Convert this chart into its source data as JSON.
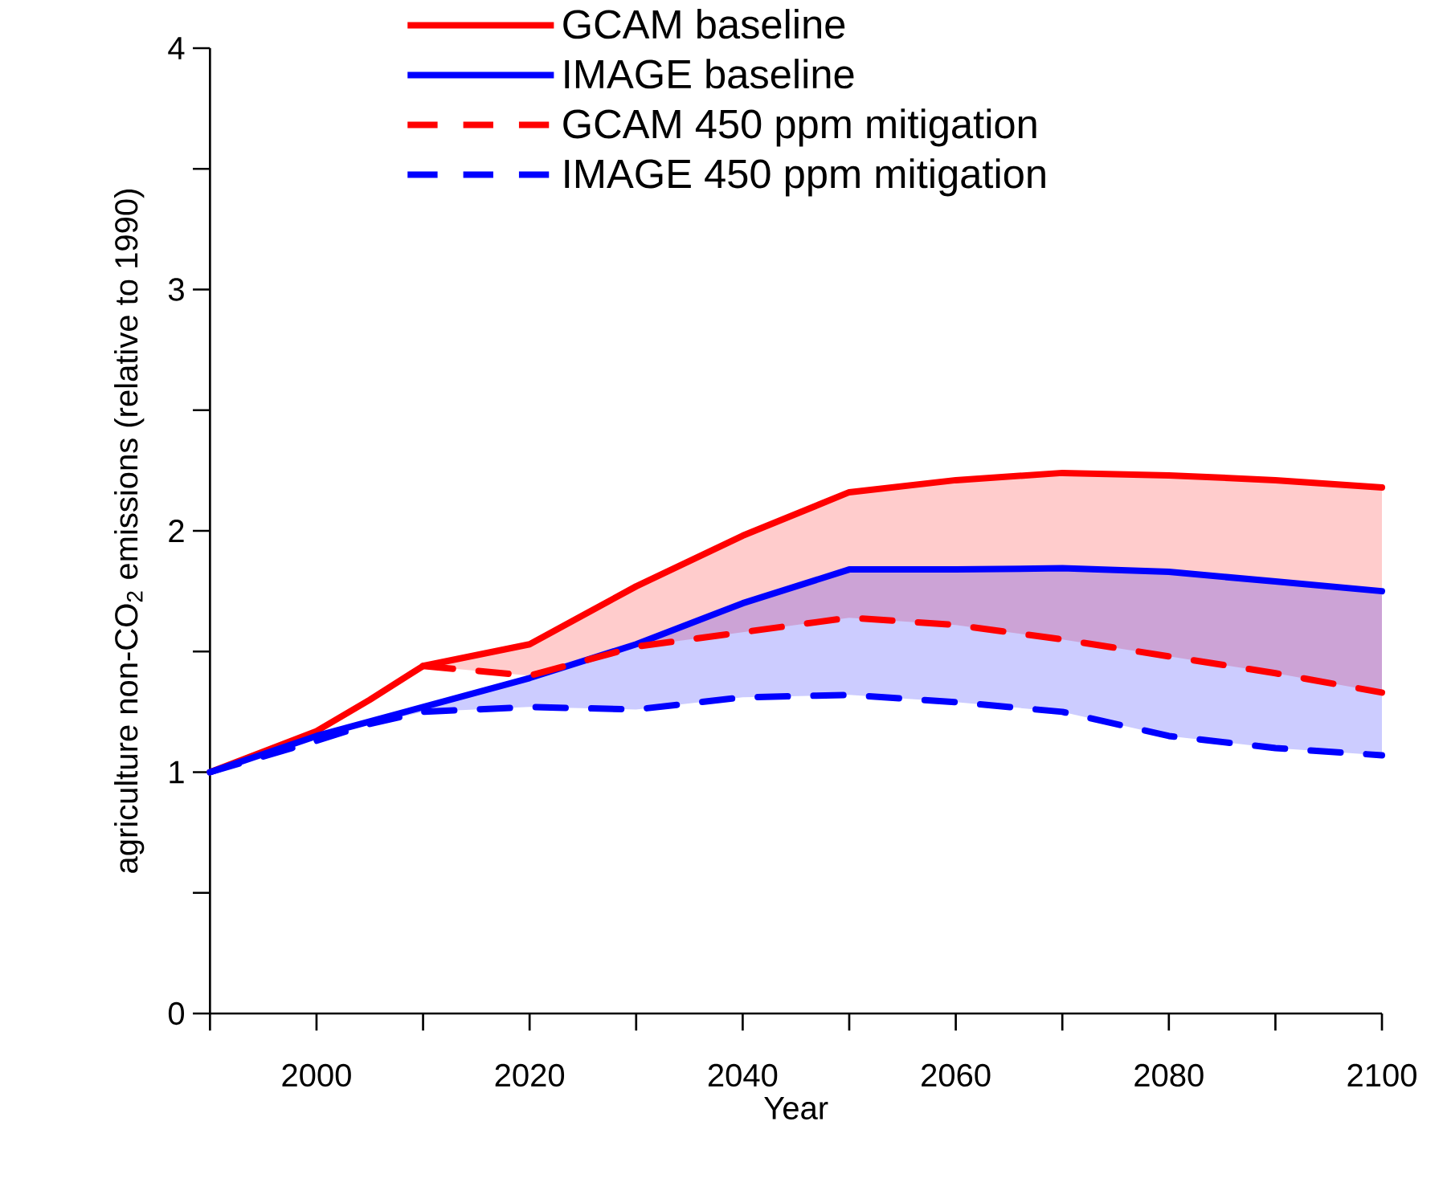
{
  "chart_data": {
    "type": "line",
    "xlabel": "Year",
    "ylabel": "agriculture non-CO$_{2}$ emissions (relative to 1990)",
    "x": [
      1990,
      2000,
      2005,
      2010,
      2020,
      2030,
      2040,
      2050,
      2060,
      2070,
      2080,
      2090,
      2100
    ],
    "series": [
      {
        "name": "GCAM baseline",
        "color": "#ff0000",
        "values": [
          1.0,
          1.17,
          1.3,
          1.44,
          1.53,
          1.77,
          1.98,
          2.16,
          2.21,
          2.24,
          2.23,
          2.21,
          2.18
        ],
        "upper": [
          null,
          null,
          null,
          1.44,
          1.53,
          1.77,
          1.98,
          2.16,
          2.21,
          2.24,
          2.23,
          2.21,
          2.18
        ],
        "lower": [
          null,
          null,
          null,
          1.44,
          1.4,
          1.52,
          1.58,
          1.64,
          1.61,
          1.55,
          1.48,
          1.41,
          1.33
        ]
      },
      {
        "name": "IMAGE baseline",
        "color": "#0000ff",
        "values": [
          1.0,
          1.15,
          1.21,
          1.27,
          1.39,
          1.53,
          1.7,
          1.84,
          1.84,
          1.845,
          1.83,
          1.79,
          1.75
        ],
        "upper": [
          null,
          null,
          1.21,
          1.27,
          1.39,
          1.53,
          1.7,
          1.84,
          1.84,
          1.845,
          1.83,
          1.79,
          1.75
        ],
        "lower": [
          null,
          null,
          1.2,
          1.25,
          1.27,
          1.26,
          1.31,
          1.32,
          1.29,
          1.25,
          1.15,
          1.1,
          1.07
        ]
      },
      {
        "name": "GCAM 450 ppm mitigation",
        "color": "#ff0000",
        "line_style": "dashed",
        "values": [
          null,
          null,
          null,
          1.44,
          1.4,
          1.52,
          1.58,
          1.64,
          1.61,
          1.55,
          1.48,
          1.41,
          1.33
        ]
      },
      {
        "name": "IMAGE 450 ppm mitigation",
        "color": "#0000ff",
        "line_style": "dashed",
        "values": [
          1.0,
          1.13,
          1.2,
          1.25,
          1.27,
          1.26,
          1.31,
          1.32,
          1.29,
          1.25,
          1.15,
          1.1,
          1.07
        ]
      }
    ],
    "xlim": [
      1990,
      2100
    ],
    "xticks": [
      {
        "value": 1990,
        "label": null
      },
      2000,
      {
        "value": 2010,
        "label": null
      },
      2020,
      {
        "value": 2030,
        "label": null
      },
      2040,
      {
        "value": 2050,
        "label": null
      },
      2060,
      {
        "value": 2070,
        "label": null
      },
      2080,
      {
        "value": 2090,
        "label": null
      },
      2100
    ],
    "ylim": [
      0,
      4
    ],
    "yticks": [
      0,
      {
        "value": 0.5,
        "label": null
      },
      1,
      {
        "value": 1.5,
        "label": null
      },
      2,
      {
        "value": 2.5,
        "label": null
      },
      3,
      {
        "value": 3.5,
        "label": null
      },
      4
    ],
    "legend": "top"
  }
}
